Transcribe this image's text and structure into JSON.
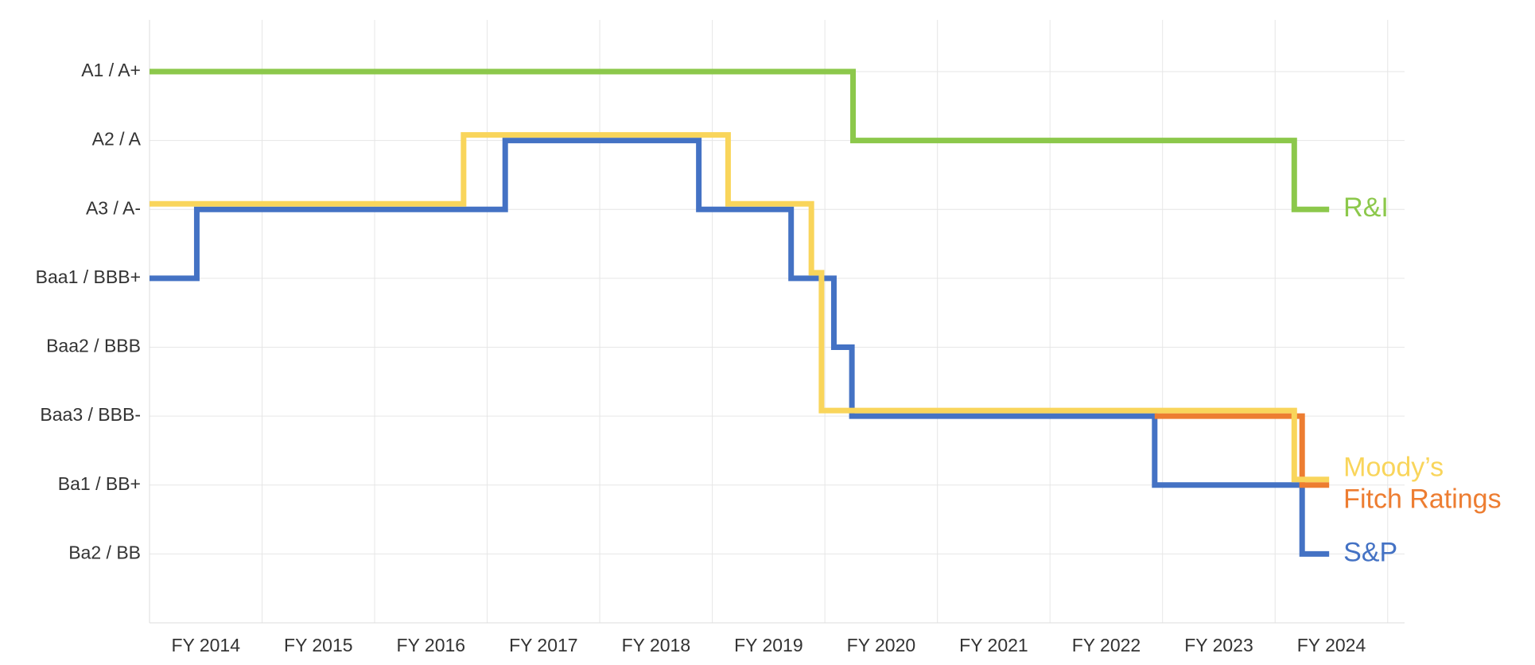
{
  "chart_data": {
    "type": "step",
    "ylim": [
      0,
      8.75
    ],
    "yticks": [
      {
        "value": 1,
        "label": "Ba2 / BB"
      },
      {
        "value": 2,
        "label": "Ba1 / BB+"
      },
      {
        "value": 3,
        "label": "Baa3 / BBB-"
      },
      {
        "value": 4,
        "label": "Baa2 / BBB"
      },
      {
        "value": 5,
        "label": "Baa1 / BBB+"
      },
      {
        "value": 6,
        "label": "A3 / A-"
      },
      {
        "value": 7,
        "label": "A2 / A"
      },
      {
        "value": 8,
        "label": "A1 / A+"
      }
    ],
    "xlim": [
      2013.5,
      2024.65
    ],
    "xticks": [
      {
        "value": 2014,
        "label": "FY 2014"
      },
      {
        "value": 2015,
        "label": "FY 2015"
      },
      {
        "value": 2016,
        "label": "FY 2016"
      },
      {
        "value": 2017,
        "label": "FY 2017"
      },
      {
        "value": 2018,
        "label": "FY 2018"
      },
      {
        "value": 2019,
        "label": "FY 2019"
      },
      {
        "value": 2020,
        "label": "FY 2020"
      },
      {
        "value": 2021,
        "label": "FY 2021"
      },
      {
        "value": 2022,
        "label": "FY 2022"
      },
      {
        "value": 2023,
        "label": "FY 2023"
      },
      {
        "value": 2024,
        "label": "FY 2024"
      }
    ],
    "grid": true,
    "series": [
      {
        "name": "S&P",
        "color": "#4472c4",
        "x": [
          2013.5,
          2013.92,
          2016.66,
          2018.38,
          2019.2,
          2019.58,
          2019.74,
          2022.43,
          2023.74,
          2023.98
        ],
        "values": [
          5,
          6,
          7,
          6,
          5,
          4,
          3,
          2,
          1,
          1
        ]
      },
      {
        "name": "Fitch Ratings",
        "color": "#ed7d31",
        "x": [
          2022.43,
          2023.74,
          2023.98
        ],
        "values": [
          3,
          2,
          2
        ]
      },
      {
        "name": "Moody’s",
        "color": "#f9d55b",
        "x": [
          2013.5,
          2016.29,
          2018.64,
          2019.38,
          2019.47,
          2023.67,
          2023.98
        ],
        "values": [
          6,
          7,
          6,
          5,
          3,
          2,
          2
        ]
      },
      {
        "name": "R&I",
        "color": "#8cc84b",
        "x": [
          2013.5,
          2019.75,
          2023.67,
          2023.98
        ],
        "values": [
          8,
          7,
          6,
          6
        ]
      }
    ]
  }
}
